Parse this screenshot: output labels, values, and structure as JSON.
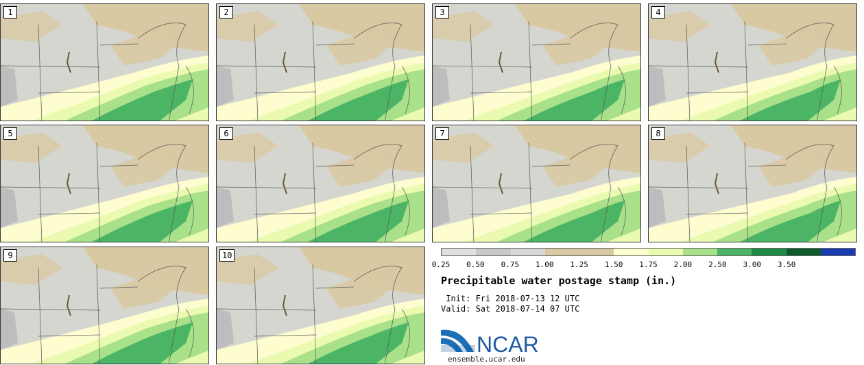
{
  "panels": [
    {
      "label": "1"
    },
    {
      "label": "2"
    },
    {
      "label": "3"
    },
    {
      "label": "4"
    },
    {
      "label": "5"
    },
    {
      "label": "6"
    },
    {
      "label": "7"
    },
    {
      "label": "8"
    },
    {
      "label": "9"
    },
    {
      "label": "10"
    }
  ],
  "colorbar": {
    "ticks": [
      "0.25",
      "0.50",
      "0.75",
      "1.00",
      "1.25",
      "1.50",
      "1.75",
      "2.00",
      "2.50",
      "3.00",
      "3.50"
    ],
    "colors": [
      "#e0e0e0",
      "#c8c8c8",
      "#d8d8d8",
      "#d9c9a3",
      "#d9c9a3",
      "#fdfdd0",
      "#eafab0",
      "#a9e08a",
      "#4cb565",
      "#1f8a45",
      "#0e5a2a",
      "#1a3bb0"
    ]
  },
  "title": "Precipitable water postage stamp (in.)",
  "init": " Init: Fri 2018-07-13 12 UTC",
  "valid": "Valid: Sat 2018-07-14 07 UTC",
  "logo": {
    "text": "NCAR",
    "url": "ensemble.ucar.edu"
  }
}
